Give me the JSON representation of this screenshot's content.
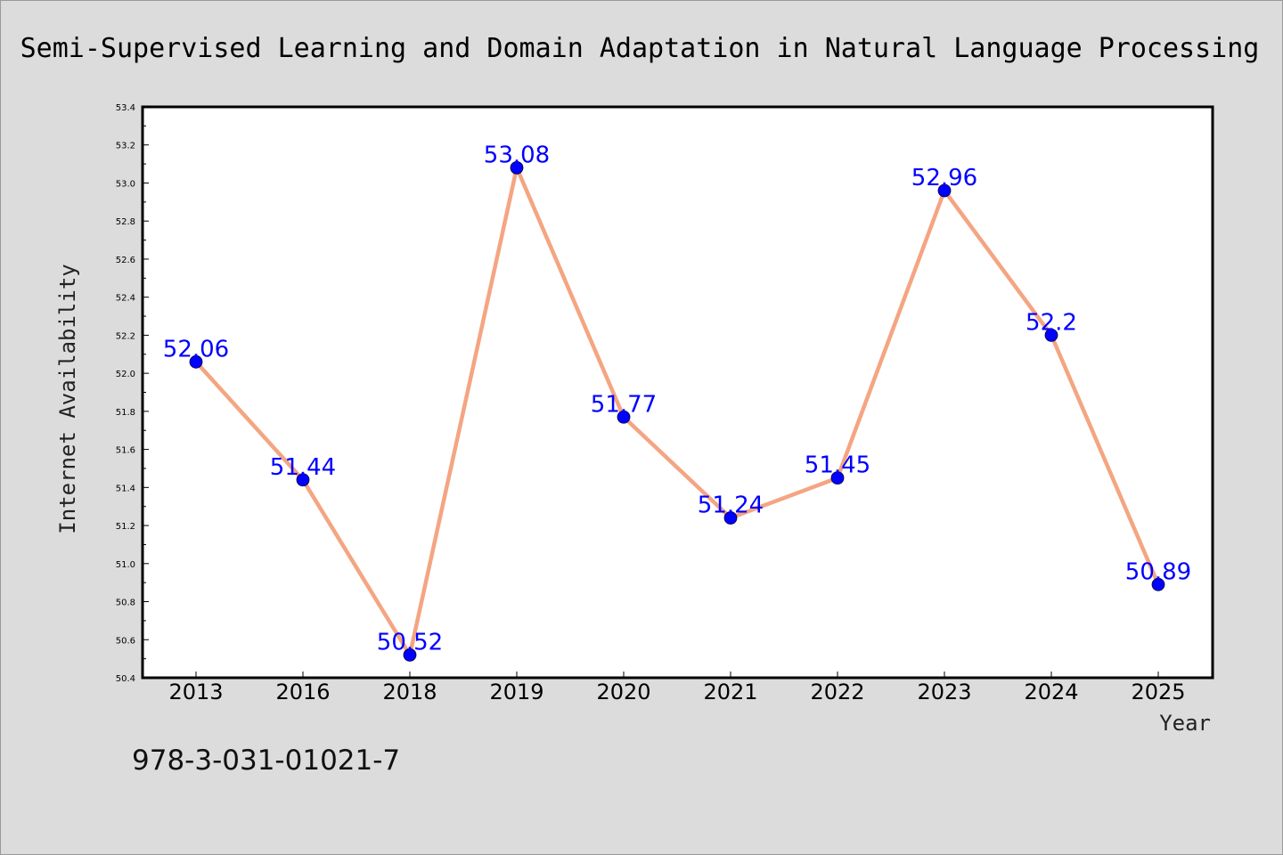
{
  "chart_data": {
    "type": "line",
    "title": "Semi-Supervised Learning and Domain Adaptation in Natural Language Processing",
    "xlabel": "Year",
    "ylabel": "Internet Availability",
    "categories": [
      "2013",
      "2016",
      "2018",
      "2019",
      "2020",
      "2021",
      "2022",
      "2023",
      "2024",
      "2025"
    ],
    "series": [
      {
        "values": [
          52.06,
          51.44,
          50.52,
          53.08,
          51.77,
          51.24,
          51.45,
          52.96,
          52.2,
          50.89
        ],
        "labels": [
          "52.06",
          "51.44",
          "50.52",
          "53.08",
          "51.77",
          "51.24",
          "51.45",
          "52.96",
          "52.2",
          "50.89"
        ],
        "line_color": "#f4a582",
        "marker_color": "#0000ff",
        "label_color": "#0000ff"
      }
    ],
    "ylim": [
      50.4,
      53.4
    ],
    "yticks": [
      "50.4",
      "50.6",
      "50.8",
      "51.0",
      "51.2",
      "51.4",
      "51.6",
      "51.8",
      "52.0",
      "52.2",
      "52.4",
      "52.6",
      "52.8",
      "53.0",
      "53.2",
      "53.4"
    ],
    "grid": false,
    "legend": "none"
  },
  "footnote": "978-3-031-01021-7",
  "colors": {
    "background": "#dcdcdc",
    "plot_background": "#ffffff",
    "axes": "#000000"
  }
}
